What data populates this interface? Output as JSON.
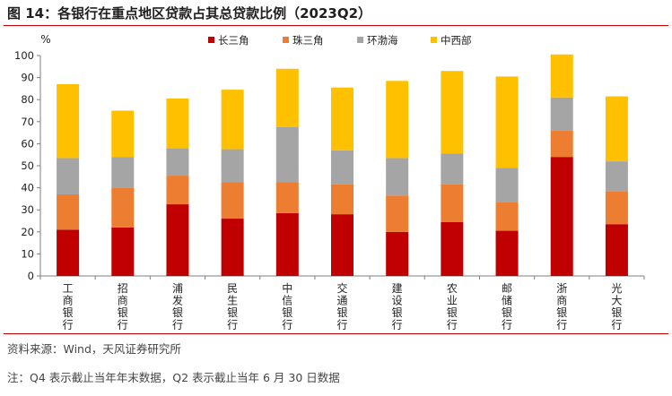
{
  "header": {
    "title": "图 14：各银行在重点地区贷款占其总贷款比例（2023Q2）"
  },
  "chart_data": {
    "type": "bar",
    "stacked": true,
    "title": "各银行在重点地区贷款占其总贷款比例（2023Q2）",
    "ylabel": "%",
    "xlabel": "",
    "ylim": [
      0,
      100
    ],
    "yticks": [
      0,
      10,
      20,
      30,
      40,
      50,
      60,
      70,
      80,
      90,
      100
    ],
    "grid": false,
    "legend_position": "top",
    "categories": [
      "工商银行",
      "招商银行",
      "浦发银行",
      "民生银行",
      "中信银行",
      "交通银行",
      "建设银行",
      "农业银行",
      "邮储银行",
      "浙商银行",
      "光大银行"
    ],
    "series": [
      {
        "name": "长三角",
        "color": "#c00000",
        "values": [
          21,
          22,
          32.5,
          26,
          28.5,
          28,
          20,
          24.5,
          20.5,
          54,
          23.5
        ]
      },
      {
        "name": "珠三角",
        "color": "#ed7d31",
        "values": [
          16,
          18,
          13,
          16.5,
          14,
          13.5,
          16.5,
          17,
          13,
          12,
          15
        ]
      },
      {
        "name": "环渤海",
        "color": "#a5a5a5",
        "values": [
          16.5,
          14,
          12.5,
          15,
          25,
          15.5,
          17,
          14,
          15.5,
          15,
          13.5
        ]
      },
      {
        "name": "中西部",
        "color": "#ffc000",
        "values": [
          33.5,
          21,
          22.5,
          27,
          26.5,
          28.5,
          35,
          37.5,
          41.5,
          19.5,
          29.5
        ]
      }
    ]
  },
  "footer": {
    "source": "资料来源：Wind，天风证券研究所",
    "note": "注：Q4 表示截止当年年末数据，Q2 表示截止当年 6 月 30 日数据"
  }
}
